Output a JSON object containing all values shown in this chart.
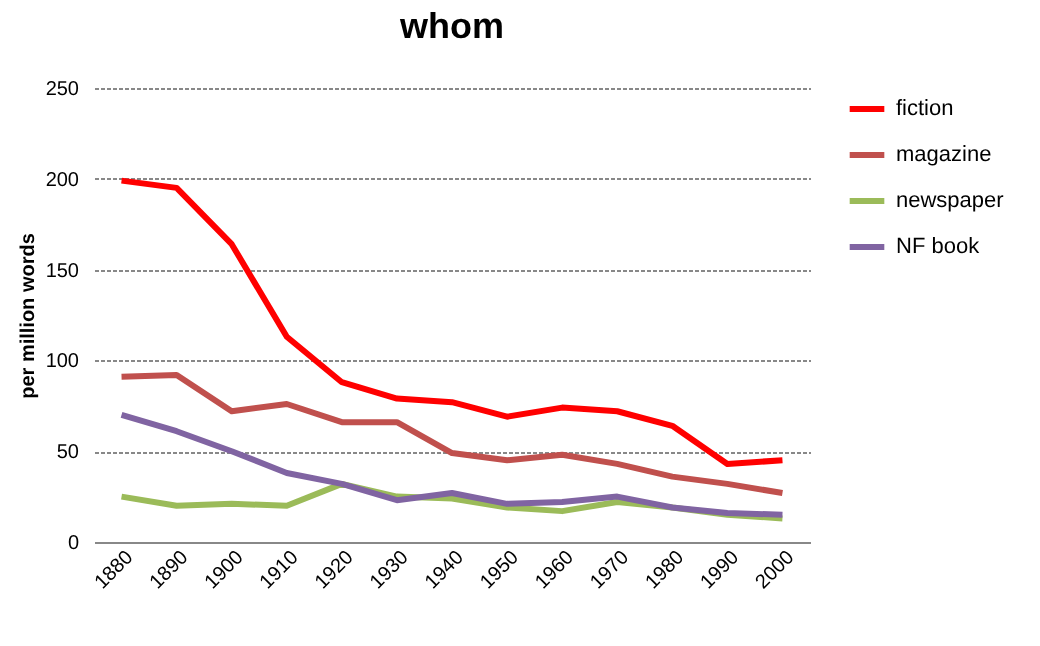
{
  "chart_data": {
    "type": "line",
    "title": "whom",
    "ylabel": "per million words",
    "categories": [
      "1880",
      "1890",
      "1900",
      "1910",
      "1920",
      "1930",
      "1940",
      "1950",
      "1960",
      "1970",
      "1980",
      "1990",
      "2000"
    ],
    "series": [
      {
        "name": "fiction",
        "color": "#ff0000",
        "values": [
          199,
          195,
          164,
          113,
          88,
          79,
          77,
          69,
          74,
          72,
          64,
          43,
          45
        ]
      },
      {
        "name": "magazine",
        "color": "#c0504d",
        "values": [
          91,
          92,
          72,
          76,
          66,
          66,
          49,
          45,
          48,
          43,
          36,
          32,
          27
        ]
      },
      {
        "name": "newspaper",
        "color": "#9bbb59",
        "values": [
          25,
          20,
          21,
          20,
          32,
          25,
          24,
          19,
          17,
          22,
          19,
          15,
          13
        ]
      },
      {
        "name": "NF book",
        "color": "#8064a2",
        "values": [
          70,
          61,
          50,
          38,
          32,
          23,
          27,
          21,
          22,
          25,
          19,
          16,
          15
        ]
      }
    ],
    "ylim": [
      0,
      250
    ],
    "yticks": [
      0,
      50,
      100,
      150,
      200,
      250
    ],
    "grid": "y",
    "legend": "right",
    "marker": "none",
    "line_style": "solid"
  }
}
